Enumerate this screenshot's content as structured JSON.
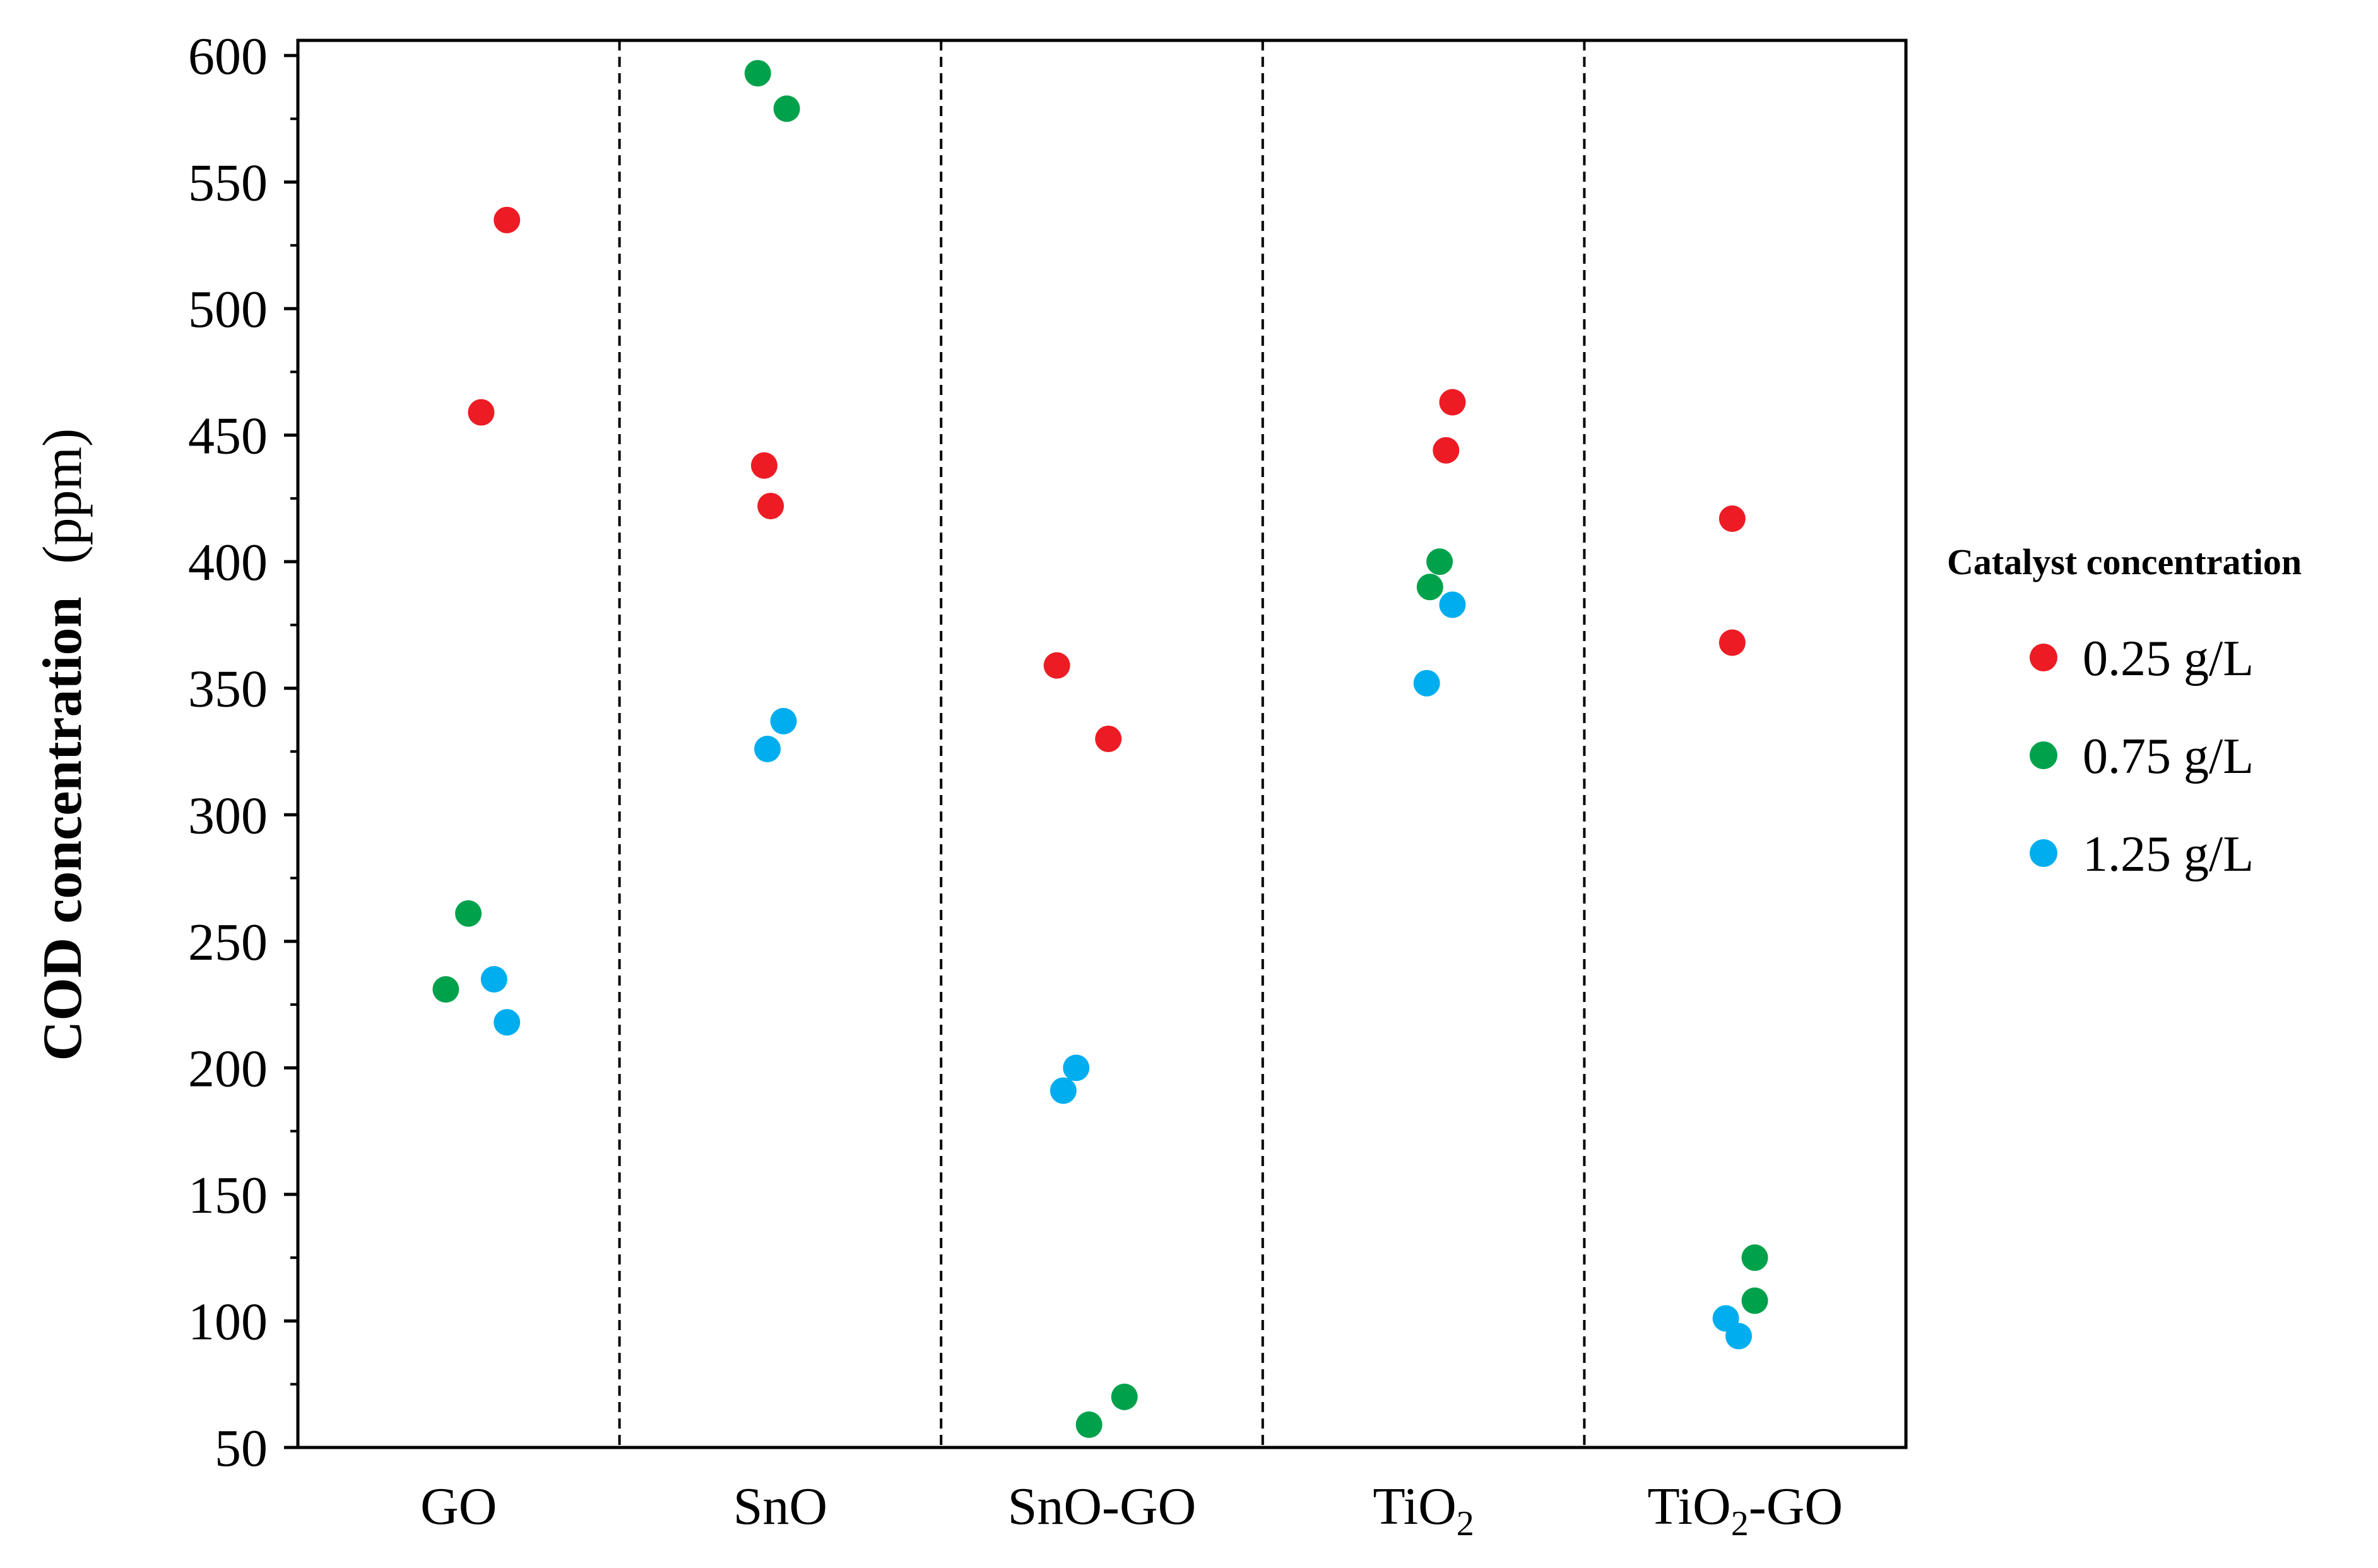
{
  "chart_data": {
    "type": "scatter",
    "title": "",
    "xlabel": "",
    "ylabel_bold": "COD concentration",
    "ylabel_unit": "(ppm)",
    "ylim": [
      50,
      600
    ],
    "yticks": [
      50,
      100,
      150,
      200,
      250,
      300,
      350,
      400,
      450,
      500,
      550,
      600
    ],
    "grid": false,
    "categories": [
      {
        "name": "GO",
        "base": "GO",
        "sub": "",
        "suffix": ""
      },
      {
        "name": "SnO",
        "base": "SnO",
        "sub": "",
        "suffix": ""
      },
      {
        "name": "SnO-GO",
        "base": "SnO-GO",
        "sub": "",
        "suffix": ""
      },
      {
        "name": "TiO2",
        "base": "TiO",
        "sub": "2",
        "suffix": ""
      },
      {
        "name": "TiO2-GO",
        "base": "TiO",
        "sub": "2",
        "suffix": "-GO"
      }
    ],
    "legend": {
      "title": "Catalyst concentration",
      "placement": "right"
    },
    "series": [
      {
        "name": "0.25 g/L",
        "color": "#ED1C24",
        "points": [
          {
            "category": "GO",
            "jitter": 0.15,
            "y": 535
          },
          {
            "category": "GO",
            "jitter": 0.07,
            "y": 459
          },
          {
            "category": "SnO",
            "jitter": -0.05,
            "y": 438
          },
          {
            "category": "SnO",
            "jitter": -0.03,
            "y": 422
          },
          {
            "category": "SnO-GO",
            "jitter": -0.14,
            "y": 359
          },
          {
            "category": "SnO-GO",
            "jitter": 0.02,
            "y": 330
          },
          {
            "category": "TiO2",
            "jitter": 0.09,
            "y": 463
          },
          {
            "category": "TiO2",
            "jitter": 0.07,
            "y": 444
          },
          {
            "category": "TiO2-GO",
            "jitter": -0.04,
            "y": 417
          },
          {
            "category": "TiO2-GO",
            "jitter": -0.04,
            "y": 368
          }
        ]
      },
      {
        "name": "0.75 g/L",
        "color": "#00A14B",
        "points": [
          {
            "category": "GO",
            "jitter": 0.03,
            "y": 261
          },
          {
            "category": "GO",
            "jitter": -0.04,
            "y": 231
          },
          {
            "category": "SnO",
            "jitter": -0.07,
            "y": 593
          },
          {
            "category": "SnO",
            "jitter": 0.02,
            "y": 579
          },
          {
            "category": "SnO-GO",
            "jitter": -0.04,
            "y": 59
          },
          {
            "category": "SnO-GO",
            "jitter": 0.07,
            "y": 70
          },
          {
            "category": "TiO2",
            "jitter": 0.05,
            "y": 400
          },
          {
            "category": "TiO2",
            "jitter": 0.02,
            "y": 390
          },
          {
            "category": "TiO2-GO",
            "jitter": 0.03,
            "y": 125
          },
          {
            "category": "TiO2-GO",
            "jitter": 0.03,
            "y": 108
          }
        ]
      },
      {
        "name": "1.25 g/L",
        "color": "#00AEEF",
        "points": [
          {
            "category": "GO",
            "jitter": 0.11,
            "y": 235
          },
          {
            "category": "GO",
            "jitter": 0.15,
            "y": 218
          },
          {
            "category": "SnO",
            "jitter": 0.01,
            "y": 337
          },
          {
            "category": "SnO",
            "jitter": -0.04,
            "y": 326
          },
          {
            "category": "SnO-GO",
            "jitter": -0.08,
            "y": 200
          },
          {
            "category": "SnO-GO",
            "jitter": -0.12,
            "y": 191
          },
          {
            "category": "TiO2",
            "jitter": 0.09,
            "y": 383
          },
          {
            "category": "TiO2",
            "jitter": 0.01,
            "y": 352
          },
          {
            "category": "TiO2-GO",
            "jitter": -0.06,
            "y": 101
          },
          {
            "category": "TiO2-GO",
            "jitter": -0.02,
            "y": 94
          }
        ]
      }
    ]
  }
}
